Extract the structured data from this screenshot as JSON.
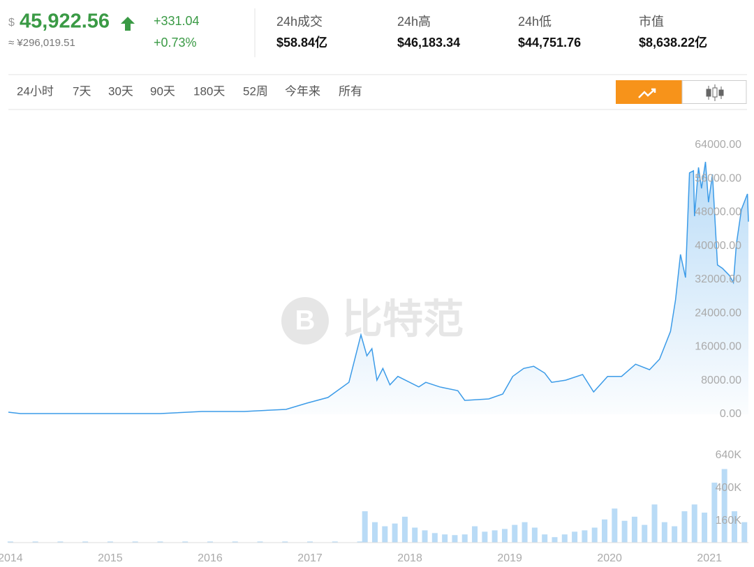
{
  "header": {
    "currency": "$",
    "price": "45,922.56",
    "cny": "≈ ¥296,019.51",
    "change": "+331.04",
    "change_pct": "+0.73%",
    "stats": [
      {
        "label": "24h成交",
        "value": "$58.84亿"
      },
      {
        "label": "24h高",
        "value": "$46,183.34"
      },
      {
        "label": "24h低",
        "value": "$44,751.76"
      },
      {
        "label": "市值",
        "value": "$8,638.22亿"
      }
    ]
  },
  "tabs": [
    "24小时",
    "7天",
    "30天",
    "90天",
    "180天",
    "52周",
    "今年来",
    "所有"
  ],
  "active_tab": 7,
  "watermark": "比特范",
  "chart_data": [
    {
      "type": "line",
      "color": "#3b9be8",
      "grid": false,
      "x": [
        2013.98,
        2014.1,
        2015.5,
        2015.92,
        2016.34,
        2016.76,
        2016.97,
        2017.18,
        2017.39,
        2017.51,
        2017.57,
        2017.62,
        2017.67,
        2017.73,
        2017.8,
        2017.88,
        2018.09,
        2018.16,
        2018.3,
        2018.48,
        2018.55,
        2018.79,
        2018.93,
        2019.03,
        2019.14,
        2019.24,
        2019.35,
        2019.42,
        2019.56,
        2019.73,
        2019.84,
        2019.98,
        2020.12,
        2020.26,
        2020.4,
        2020.5,
        2020.61,
        2020.66,
        2020.71,
        2020.76,
        2020.8,
        2020.84,
        2020.85,
        2020.89,
        2020.92,
        2020.96,
        2020.99,
        2021.03,
        2021.08,
        2021.13,
        2021.2,
        2021.24,
        2021.27,
        2021.32,
        2021.38,
        2021.39
      ],
      "values": [
        500,
        170,
        170,
        660,
        660,
        1160,
        2650,
        4000,
        7600,
        18900,
        13900,
        15600,
        8100,
        10900,
        7000,
        9000,
        6500,
        7600,
        6500,
        5600,
        3300,
        3650,
        4800,
        9000,
        10900,
        11400,
        9800,
        7600,
        8100,
        9450,
        5300,
        9000,
        9000,
        11900,
        10600,
        13100,
        19700,
        27200,
        38000,
        32500,
        57400,
        57900,
        47100,
        58700,
        53700,
        60000,
        50400,
        57000,
        35500,
        34700,
        33000,
        31300,
        40500,
        48700,
        52400,
        45800
      ],
      "xlim": [
        2013.98,
        2021.39
      ],
      "xticks": [
        2014,
        2015,
        2016,
        2017,
        2018,
        2019,
        2020,
        2021
      ],
      "ylim": [
        0,
        64000
      ],
      "yticks": [
        {
          "value": 0,
          "label": "0.00"
        },
        {
          "value": 8000,
          "label": "8000.00"
        },
        {
          "value": 16000,
          "label": "16000.00"
        },
        {
          "value": 24000,
          "label": "24000.00"
        },
        {
          "value": 32000,
          "label": "32000.00"
        },
        {
          "value": 40000,
          "label": "40000.00"
        },
        {
          "value": 48000,
          "label": "48000.00"
        },
        {
          "value": 56000,
          "label": "56000.00"
        },
        {
          "value": 64000,
          "label": "64000.00"
        }
      ]
    },
    {
      "type": "bar",
      "color": "#b9dbf6",
      "x": [
        2014.0,
        2014.25,
        2014.5,
        2014.75,
        2015.0,
        2015.25,
        2015.5,
        2015.75,
        2016.0,
        2016.25,
        2016.5,
        2016.75,
        2017.0,
        2017.25,
        2017.5,
        2017.55,
        2017.65,
        2017.75,
        2017.85,
        2017.95,
        2018.05,
        2018.15,
        2018.25,
        2018.35,
        2018.45,
        2018.55,
        2018.65,
        2018.75,
        2018.85,
        2018.95,
        2019.05,
        2019.15,
        2019.25,
        2019.35,
        2019.45,
        2019.55,
        2019.65,
        2019.75,
        2019.85,
        2019.95,
        2020.05,
        2020.15,
        2020.25,
        2020.35,
        2020.45,
        2020.55,
        2020.65,
        2020.75,
        2020.85,
        2020.95,
        2021.05,
        2021.15,
        2021.25,
        2021.35
      ],
      "values": [
        8000,
        8000,
        8000,
        8000,
        8000,
        8000,
        8000,
        8000,
        8000,
        8000,
        8000,
        8000,
        8000,
        8000,
        8000,
        230000,
        150000,
        120000,
        140000,
        190000,
        110000,
        90000,
        70000,
        60000,
        55000,
        60000,
        120000,
        80000,
        90000,
        100000,
        130000,
        150000,
        110000,
        60000,
        40000,
        60000,
        80000,
        90000,
        110000,
        170000,
        250000,
        160000,
        190000,
        130000,
        280000,
        150000,
        120000,
        230000,
        280000,
        220000,
        440000,
        540000,
        230000,
        150000
      ],
      "xlim": [
        2013.98,
        2021.39
      ],
      "ylim": [
        0,
        640000
      ],
      "yticks": [
        {
          "value": 160000,
          "label": "160K"
        },
        {
          "value": 400000,
          "label": "400K"
        },
        {
          "value": 640000,
          "label": "640K"
        }
      ]
    }
  ]
}
